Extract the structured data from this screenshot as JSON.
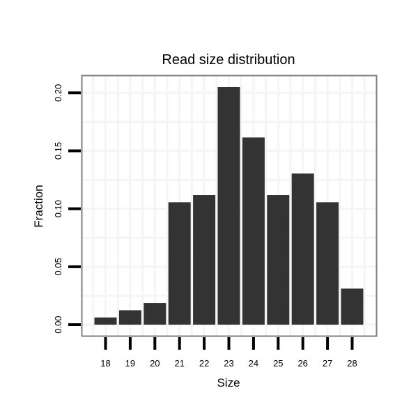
{
  "chart_data": {
    "type": "bar",
    "title": "Read size distribution",
    "xlabel": "Size",
    "ylabel": "Fraction",
    "categories": [
      "18",
      "19",
      "20",
      "21",
      "22",
      "23",
      "24",
      "25",
      "26",
      "27",
      "28"
    ],
    "values": [
      0.0062,
      0.0124,
      0.0186,
      0.1056,
      0.1118,
      0.205,
      0.1615,
      0.1118,
      0.1304,
      0.1056,
      0.0311
    ],
    "ylim": [
      -0.01,
      0.215
    ],
    "yticks": [
      0,
      0.05,
      0.1,
      0.15,
      0.2
    ],
    "ytick_labels": [
      "0.00",
      "0.05",
      "0.10",
      "0.15",
      "0.20"
    ],
    "grid": true,
    "bar_color": "#333333",
    "grid_color": "#f5f5f5",
    "border_color": "#7f7f7f"
  }
}
